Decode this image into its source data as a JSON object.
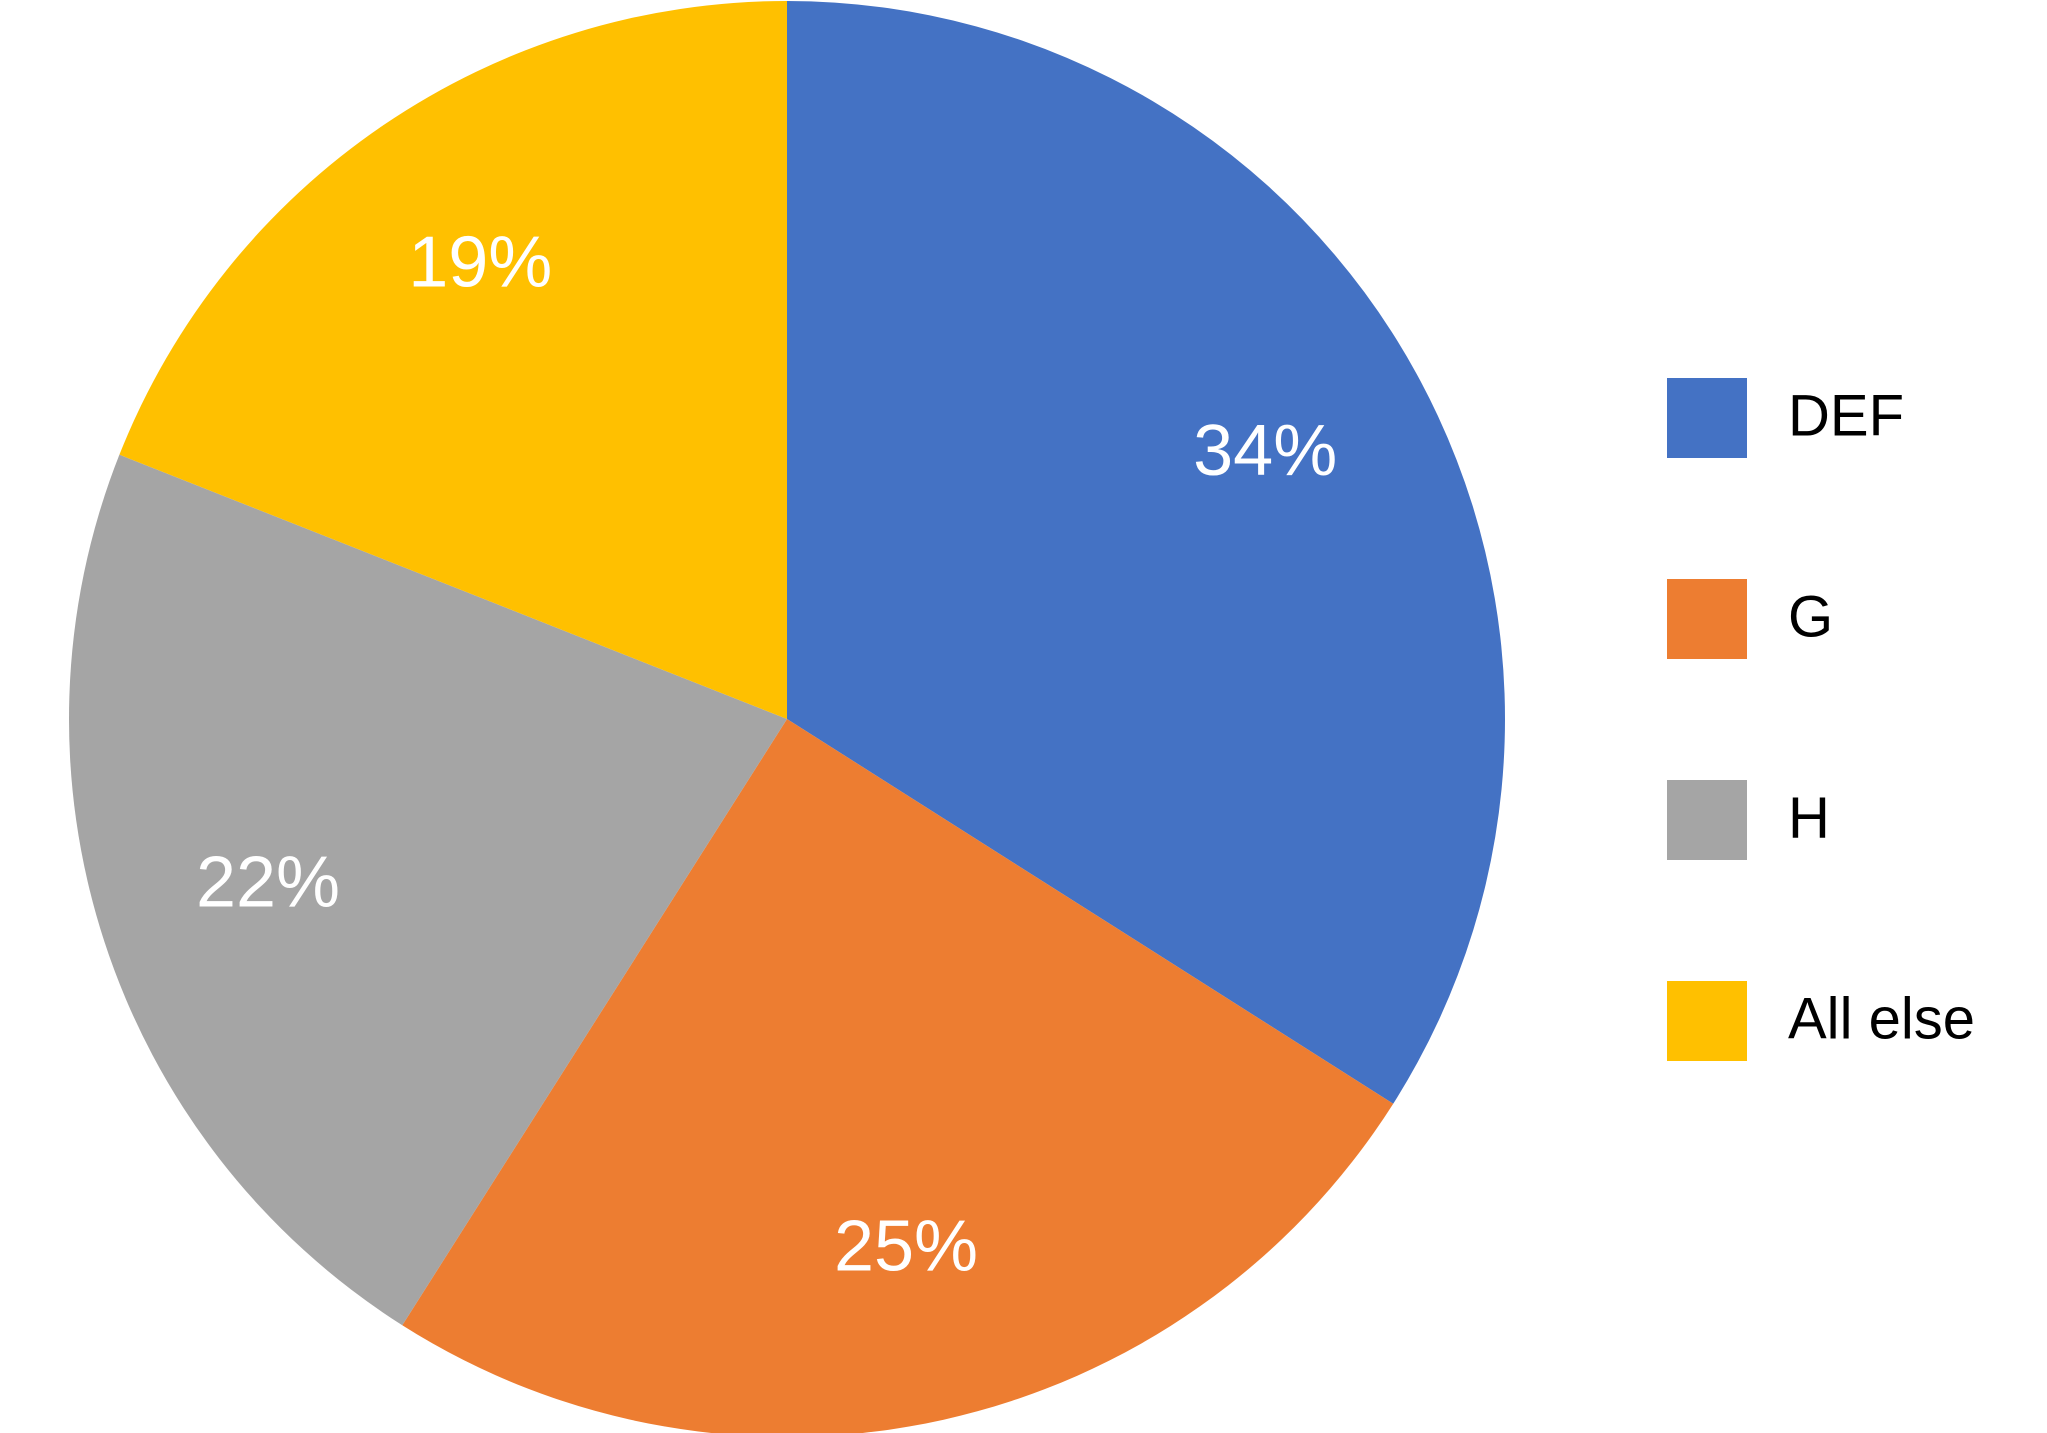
{
  "chart_data": {
    "type": "pie",
    "categories": [
      "DEF",
      "G",
      "H",
      "All else"
    ],
    "values": [
      34,
      25,
      22,
      19
    ],
    "value_labels": [
      "34%",
      "25%",
      "22%",
      "19%"
    ],
    "colors": [
      "#4472c4",
      "#ed7d31",
      "#a5a5a5",
      "#ffc000"
    ],
    "legend": "right"
  }
}
